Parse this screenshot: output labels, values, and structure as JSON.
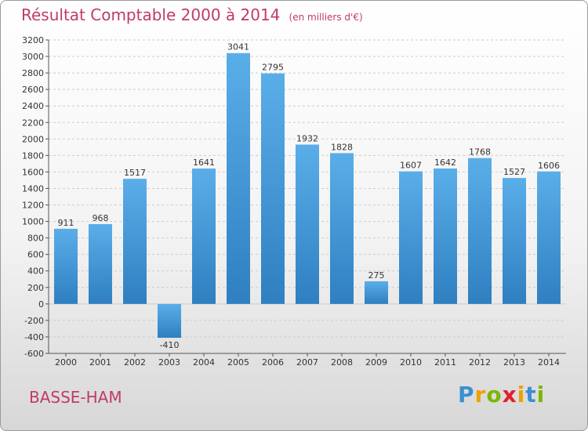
{
  "title": "Résultat Comptable 2000 à 2014",
  "subtitle": "(en milliers d'€)",
  "commune": "BASSE-HAM",
  "logo": {
    "letters": [
      "P",
      "r",
      "o",
      "x",
      "i",
      "t",
      "i"
    ],
    "colors": [
      "#3a8fd0",
      "#f0a000",
      "#7cb600",
      "#e0202a",
      "#f0a000",
      "#3a8fd0",
      "#7cb600"
    ]
  },
  "colors": {
    "accent": "#c03a6a",
    "bar_light": "#5aaee8",
    "bar_dark": "#2f7fc1",
    "grid": "#cccccc"
  },
  "chart_data": {
    "type": "bar",
    "categories": [
      "2000",
      "2001",
      "2002",
      "2003",
      "2004",
      "2005",
      "2006",
      "2007",
      "2008",
      "2009",
      "2010",
      "2011",
      "2012",
      "2013",
      "2014"
    ],
    "values": [
      911,
      968,
      1517,
      -410,
      1641,
      3041,
      2795,
      1932,
      1828,
      275,
      1607,
      1642,
      1768,
      1527,
      1606
    ],
    "ylim": [
      -600,
      3200
    ],
    "ytick_step": 200,
    "grid": true
  }
}
